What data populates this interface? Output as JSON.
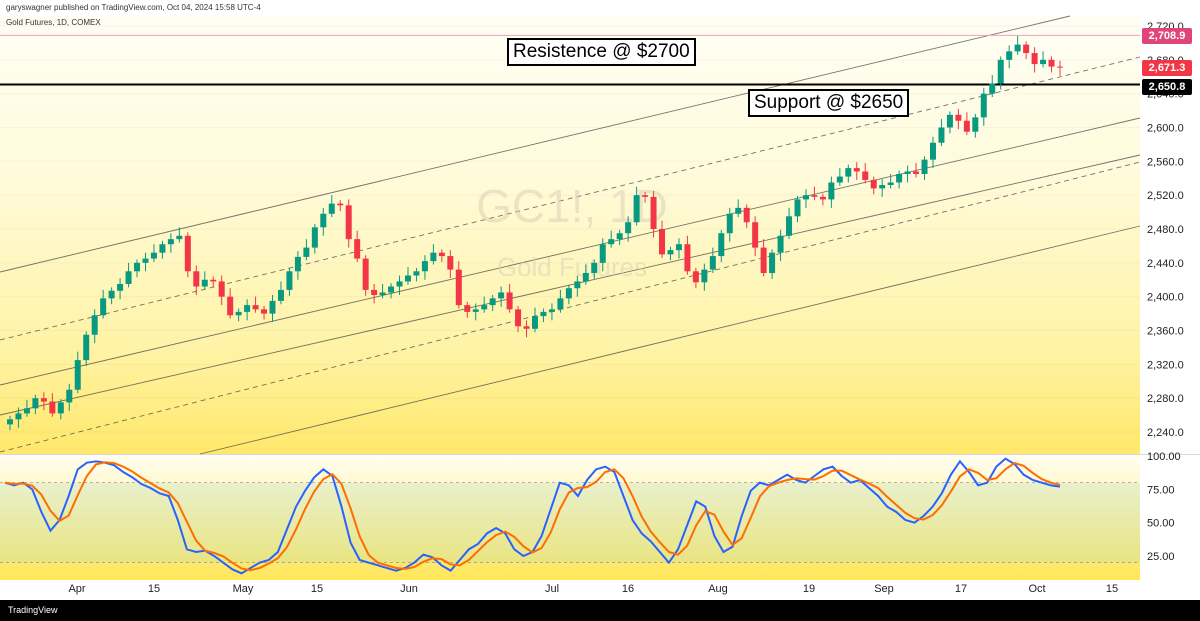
{
  "header": {
    "published": "garyswagner published on TradingView.com, Oct 04, 2024 15:58 UTC-4",
    "symbol": "Gold Futures, 1D, COMEX"
  },
  "watermark": {
    "ticker": "GC1!, 1D",
    "name": "Gold Futures"
  },
  "annotations": {
    "resistance": "Resistence @ $2700",
    "support": "Support @ $2650"
  },
  "price_tags": {
    "resistance": "2,708.9",
    "last": "2,671.3",
    "support": "2,650.8"
  },
  "footer": {
    "logo": "TradingView"
  },
  "colors": {
    "up": "#089981",
    "down": "#f23645",
    "k_line": "#2962ff",
    "d_line": "#ff6d00",
    "resistance_line": "#f0a0b8",
    "support_line": "#000000",
    "background_top": "#fffef6",
    "background_bottom": "#ffe968"
  },
  "chart_data": [
    {
      "type": "candlestick",
      "title": "",
      "y_ticks": [
        "2,720.0",
        "2,680.0",
        "2,640.0",
        "2,600.0",
        "2,560.0",
        "2,520.0",
        "2,480.0",
        "2,440.0",
        "2,400.0",
        "2,360.0",
        "2,320.0",
        "2,280.0",
        "2,240.0"
      ],
      "x_ticks": [
        "Apr",
        "15",
        "May",
        "15",
        "Jun",
        "Jul",
        "16",
        "Aug",
        "19",
        "Sep",
        "17",
        "Oct",
        "15"
      ],
      "ylim": [
        2210,
        2730
      ],
      "horizontal_levels": [
        {
          "name": "resistance",
          "value": 2708.9
        },
        {
          "name": "support",
          "value": 2650.8
        }
      ],
      "close_approx": [
        2255,
        2262,
        2268,
        2280,
        2276,
        2262,
        2275,
        2290,
        2325,
        2355,
        2378,
        2398,
        2407,
        2415,
        2430,
        2440,
        2445,
        2452,
        2462,
        2468,
        2472,
        2430,
        2412,
        2420,
        2418,
        2400,
        2378,
        2382,
        2390,
        2385,
        2380,
        2395,
        2408,
        2430,
        2447,
        2458,
        2482,
        2498,
        2510,
        2508,
        2468,
        2445,
        2408,
        2402,
        2405,
        2412,
        2418,
        2425,
        2430,
        2442,
        2452,
        2448,
        2432,
        2390,
        2382,
        2385,
        2390,
        2398,
        2405,
        2385,
        2365,
        2362,
        2377,
        2382,
        2385,
        2398,
        2410,
        2418,
        2428,
        2440,
        2462,
        2468,
        2475,
        2488,
        2520,
        2518,
        2480,
        2450,
        2455,
        2462,
        2430,
        2417,
        2432,
        2448,
        2475,
        2498,
        2505,
        2488,
        2458,
        2428,
        2452,
        2472,
        2495,
        2515,
        2520,
        2518,
        2515,
        2535,
        2542,
        2552,
        2548,
        2538,
        2528,
        2532,
        2535,
        2545,
        2548,
        2545,
        2562,
        2582,
        2600,
        2615,
        2608,
        2595,
        2612,
        2640,
        2652,
        2680,
        2690,
        2698,
        2688,
        2675,
        2680,
        2672,
        2671
      ],
      "stochastic": {
        "k_ticks": [
          "100.00",
          "75.00",
          "50.00",
          "25.00"
        ],
        "ylim": [
          0,
          105
        ],
        "overbought": 80,
        "oversold": 20,
        "k_approx": [
          80,
          78,
          80,
          75,
          58,
          44,
          52,
          70,
          90,
          95,
          96,
          95,
          93,
          88,
          84,
          79,
          76,
          72,
          70,
          52,
          30,
          28,
          29,
          25,
          20,
          15,
          12,
          16,
          20,
          22,
          28,
          45,
          62,
          74,
          84,
          90,
          85,
          62,
          35,
          22,
          20,
          18,
          16,
          14,
          16,
          20,
          26,
          24,
          18,
          14,
          22,
          30,
          34,
          42,
          46,
          42,
          30,
          25,
          28,
          40,
          60,
          80,
          78,
          70,
          82,
          90,
          92,
          88,
          70,
          52,
          42,
          36,
          28,
          20,
          30,
          48,
          66,
          62,
          40,
          28,
          32,
          55,
          74,
          80,
          78,
          82,
          86,
          82,
          80,
          85,
          90,
          92,
          85,
          80,
          82,
          76,
          70,
          62,
          58,
          52,
          50,
          55,
          62,
          72,
          86,
          96,
          88,
          78,
          80,
          92,
          98,
          94,
          86,
          82,
          80,
          78,
          77
        ]
      }
    }
  ]
}
